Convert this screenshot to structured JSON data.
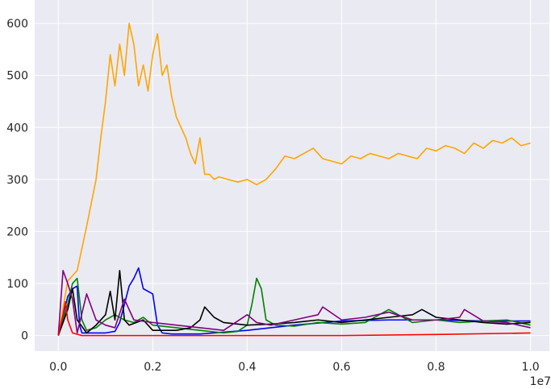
{
  "chart_data": {
    "type": "line",
    "title": "",
    "xlabel": "",
    "ylabel": "",
    "x_offset_label": "1e7",
    "xlim": [
      -0.05,
      1.04
    ],
    "ylim": [
      -30,
      645
    ],
    "x_ticks": [
      0.0,
      0.2,
      0.4,
      0.6,
      0.8,
      1.0
    ],
    "x_tick_labels": [
      "0.0",
      "0.2",
      "0.4",
      "0.6",
      "0.8",
      "1.0"
    ],
    "y_ticks": [
      0,
      100,
      200,
      300,
      400,
      500,
      600
    ],
    "y_tick_labels": [
      "0",
      "100",
      "200",
      "300",
      "400",
      "500",
      "600"
    ],
    "grid": true,
    "background": "#eaeaf2",
    "series": [
      {
        "color": "#ffa500",
        "x": [
          0.0,
          0.02,
          0.04,
          0.06,
          0.08,
          0.09,
          0.1,
          0.11,
          0.12,
          0.13,
          0.14,
          0.15,
          0.16,
          0.17,
          0.18,
          0.19,
          0.2,
          0.21,
          0.22,
          0.23,
          0.24,
          0.25,
          0.26,
          0.27,
          0.28,
          0.29,
          0.3,
          0.31,
          0.32,
          0.33,
          0.34,
          0.36,
          0.38,
          0.4,
          0.42,
          0.44,
          0.46,
          0.48,
          0.5,
          0.52,
          0.54,
          0.56,
          0.58,
          0.6,
          0.62,
          0.64,
          0.66,
          0.68,
          0.7,
          0.72,
          0.74,
          0.76,
          0.78,
          0.8,
          0.82,
          0.84,
          0.86,
          0.88,
          0.9,
          0.92,
          0.94,
          0.96,
          0.98,
          1.0
        ],
        "y": [
          0,
          105,
          125,
          210,
          300,
          380,
          450,
          540,
          480,
          560,
          500,
          600,
          560,
          480,
          520,
          470,
          540,
          580,
          500,
          520,
          460,
          420,
          400,
          380,
          350,
          330,
          380,
          310,
          310,
          300,
          305,
          300,
          295,
          300,
          290,
          300,
          320,
          345,
          340,
          350,
          360,
          340,
          335,
          330,
          345,
          340,
          350,
          345,
          340,
          350,
          345,
          340,
          360,
          355,
          365,
          360,
          350,
          370,
          360,
          375,
          370,
          380,
          365,
          370
        ]
      },
      {
        "color": "#0000ff",
        "x": [
          0.0,
          0.02,
          0.03,
          0.04,
          0.045,
          0.05,
          0.1,
          0.12,
          0.13,
          0.14,
          0.15,
          0.16,
          0.17,
          0.18,
          0.2,
          0.21,
          0.22,
          0.24,
          0.3,
          0.4,
          0.5,
          0.6,
          0.7,
          0.8,
          0.9,
          1.0
        ],
        "y": [
          0,
          75,
          90,
          95,
          20,
          5,
          5,
          8,
          25,
          60,
          95,
          110,
          130,
          90,
          80,
          20,
          5,
          3,
          3,
          10,
          20,
          28,
          30,
          30,
          28,
          28
        ]
      },
      {
        "color": "#008000",
        "x": [
          0.0,
          0.02,
          0.03,
          0.04,
          0.05,
          0.06,
          0.08,
          0.1,
          0.12,
          0.14,
          0.16,
          0.18,
          0.2,
          0.25,
          0.3,
          0.35,
          0.38,
          0.4,
          0.41,
          0.42,
          0.43,
          0.44,
          0.46,
          0.5,
          0.55,
          0.6,
          0.65,
          0.7,
          0.75,
          0.8,
          0.85,
          0.9,
          0.95,
          1.0
        ],
        "y": [
          0,
          60,
          100,
          110,
          30,
          10,
          15,
          30,
          40,
          30,
          25,
          35,
          20,
          15,
          10,
          5,
          8,
          20,
          60,
          110,
          90,
          30,
          20,
          18,
          25,
          22,
          25,
          50,
          25,
          30,
          25,
          28,
          30,
          20
        ]
      },
      {
        "color": "#000000",
        "x": [
          0.0,
          0.02,
          0.03,
          0.04,
          0.06,
          0.08,
          0.1,
          0.11,
          0.12,
          0.13,
          0.14,
          0.15,
          0.18,
          0.2,
          0.25,
          0.28,
          0.3,
          0.31,
          0.33,
          0.35,
          0.4,
          0.45,
          0.5,
          0.55,
          0.6,
          0.65,
          0.7,
          0.75,
          0.77,
          0.8,
          0.85,
          0.9,
          0.95,
          1.0
        ],
        "y": [
          0,
          50,
          90,
          30,
          5,
          20,
          40,
          85,
          30,
          125,
          30,
          20,
          30,
          10,
          10,
          15,
          30,
          55,
          35,
          25,
          20,
          22,
          25,
          30,
          25,
          30,
          35,
          40,
          50,
          35,
          30,
          25,
          22,
          25
        ]
      },
      {
        "color": "#800080",
        "x": [
          0.0,
          0.01,
          0.02,
          0.03,
          0.04,
          0.06,
          0.08,
          0.1,
          0.12,
          0.14,
          0.16,
          0.2,
          0.25,
          0.3,
          0.35,
          0.4,
          0.42,
          0.45,
          0.5,
          0.55,
          0.56,
          0.6,
          0.65,
          0.7,
          0.75,
          0.8,
          0.85,
          0.86,
          0.9,
          0.95,
          1.0
        ],
        "y": [
          0,
          125,
          100,
          70,
          5,
          80,
          30,
          20,
          15,
          70,
          30,
          25,
          20,
          15,
          10,
          40,
          25,
          20,
          30,
          40,
          55,
          30,
          35,
          45,
          30,
          30,
          35,
          50,
          28,
          25,
          15
        ]
      },
      {
        "color": "#ff0000",
        "x": [
          0.0,
          0.01,
          0.015,
          0.02,
          0.03,
          0.05,
          0.1,
          0.2,
          0.4,
          0.6,
          0.8,
          1.0
        ],
        "y": [
          0,
          40,
          65,
          30,
          5,
          0,
          0,
          0,
          0,
          0,
          2,
          5
        ]
      }
    ]
  }
}
